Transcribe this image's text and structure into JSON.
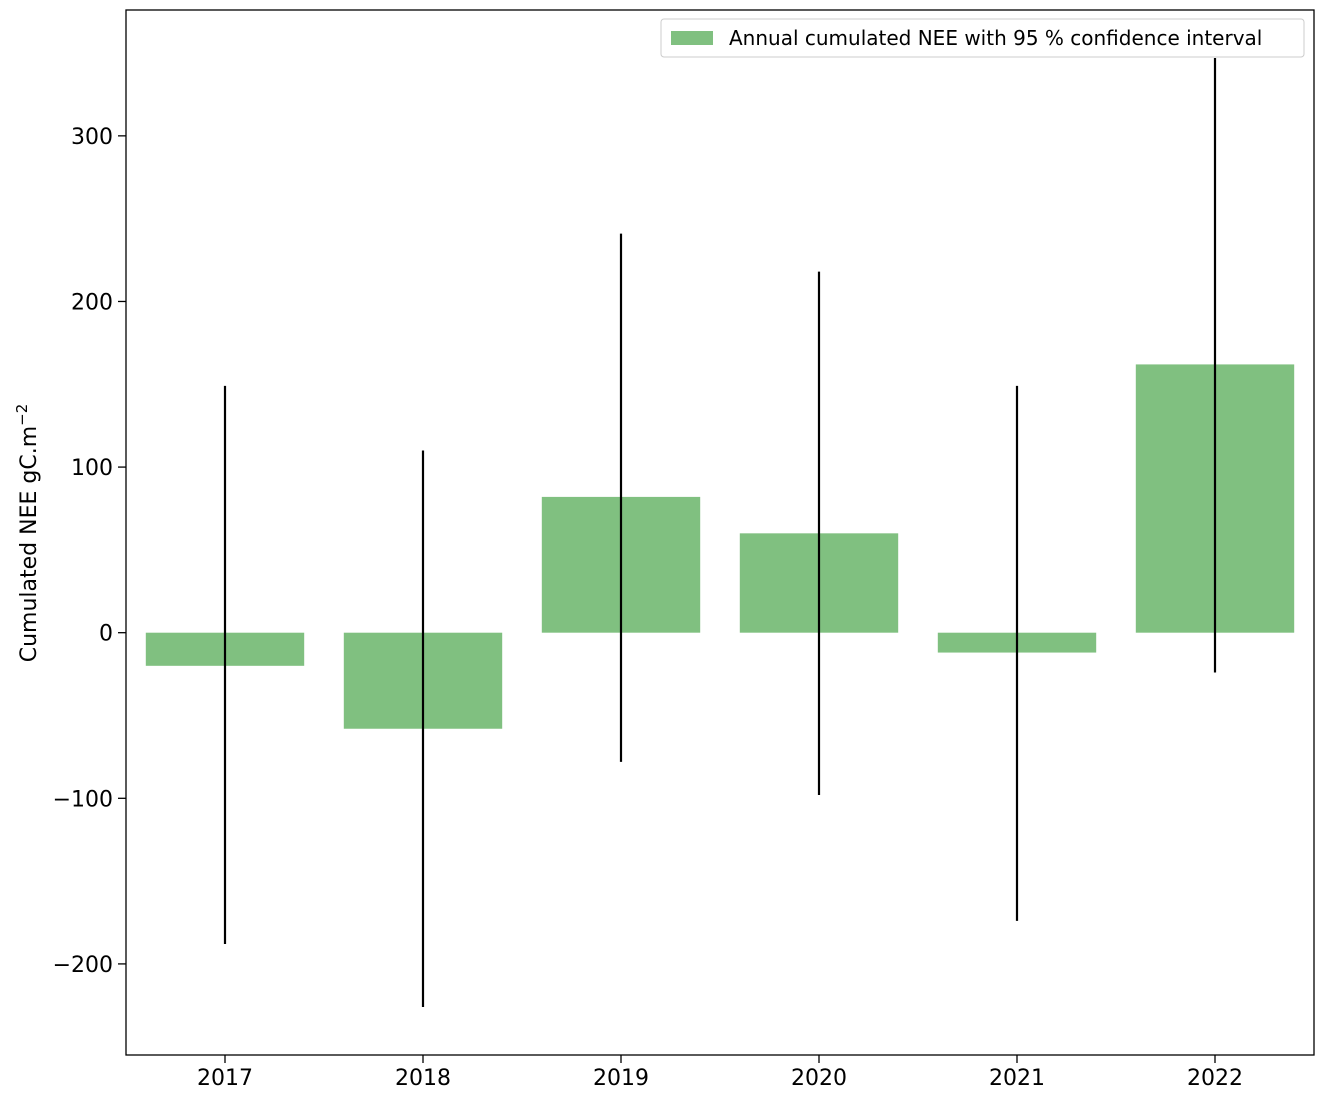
{
  "chart_data": {
    "type": "bar",
    "categories": [
      "2017",
      "2018",
      "2019",
      "2020",
      "2021",
      "2022"
    ],
    "values": [
      -20,
      -58,
      82,
      60,
      -12,
      162
    ],
    "ci_lower": [
      -188,
      -226,
      -78,
      -98,
      -174,
      -24
    ],
    "ci_upper": [
      149,
      110,
      241,
      218,
      149,
      347
    ],
    "yticks": [
      -200,
      -100,
      0,
      100,
      200,
      300
    ],
    "ytick_labels": [
      "−200",
      "−100",
      "0",
      "100",
      "200",
      "300"
    ],
    "ylim": [
      -255,
      376
    ],
    "ylabel": "Cumulated NEE gC.m",
    "ylabel_exponent": "−2",
    "legend": {
      "label": "Annual cumulated NEE with 95 % confidence interval",
      "placement": "top-right"
    },
    "grid": false,
    "bar_color": "#80c080",
    "errorbar_color": "#000000"
  }
}
